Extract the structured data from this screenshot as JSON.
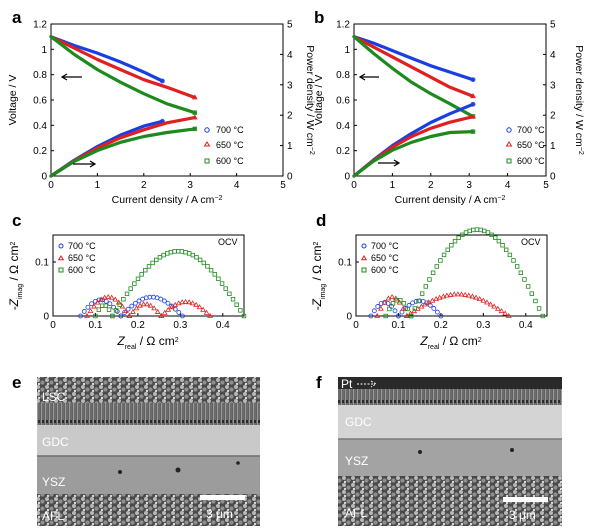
{
  "figure": {
    "panels": {
      "a": "a",
      "b": "b",
      "c": "c",
      "d": "d",
      "e": "e",
      "f": "f"
    }
  },
  "legend": {
    "series": [
      "700 °C",
      "650 °C",
      "600 °C"
    ],
    "colors": [
      "#1a3fe0",
      "#e02020",
      "#1e8a1e"
    ],
    "markers": [
      "circle",
      "triangle",
      "square"
    ]
  },
  "chart_data": [
    {
      "panel": "a",
      "type": "line",
      "xlabel": "Current density / A cm",
      "xlabel_sup": "−2",
      "ylabel_left": "Voltage / V",
      "ylabel_right": "Power density / W cm",
      "ylabel_right_sup": "−2",
      "xlim": [
        0,
        5
      ],
      "ylim_left": [
        0,
        1.2
      ],
      "ylim_right": [
        0,
        5
      ],
      "xticks": [
        "0",
        "1",
        "2",
        "3",
        "4",
        "5"
      ],
      "yticks_left": [
        "0",
        "0.2",
        "0.4",
        "0.6",
        "0.8",
        "1",
        "1.2"
      ],
      "yticks_right": [
        "0",
        "1",
        "2",
        "3",
        "4",
        "5"
      ],
      "series": [
        {
          "name": "700 °C",
          "axis": "left",
          "x": [
            0,
            0.5,
            1,
            1.5,
            2,
            2.4
          ],
          "y": [
            1.1,
            1.03,
            0.97,
            0.9,
            0.82,
            0.75
          ]
        },
        {
          "name": "650 °C",
          "axis": "left",
          "x": [
            0,
            0.5,
            1,
            1.5,
            2,
            2.5,
            3.1
          ],
          "y": [
            1.1,
            1.01,
            0.92,
            0.84,
            0.76,
            0.7,
            0.62
          ]
        },
        {
          "name": "600 °C",
          "axis": "left",
          "x": [
            0,
            0.5,
            1,
            1.5,
            2,
            2.5,
            3.1
          ],
          "y": [
            1.1,
            0.96,
            0.84,
            0.74,
            0.65,
            0.57,
            0.5
          ]
        },
        {
          "name": "700 °C",
          "axis": "right",
          "x": [
            0,
            0.5,
            1,
            1.5,
            2,
            2.4
          ],
          "y": [
            0,
            0.52,
            0.97,
            1.35,
            1.64,
            1.8
          ]
        },
        {
          "name": "650 °C",
          "axis": "right",
          "x": [
            0,
            0.5,
            1,
            1.5,
            2,
            2.5,
            3.1
          ],
          "y": [
            0,
            0.5,
            0.92,
            1.26,
            1.52,
            1.75,
            1.92
          ]
        },
        {
          "name": "600 °C",
          "axis": "right",
          "x": [
            0,
            0.5,
            1,
            1.5,
            2,
            2.5,
            3.1
          ],
          "y": [
            0,
            0.48,
            0.84,
            1.11,
            1.3,
            1.43,
            1.55
          ]
        }
      ]
    },
    {
      "panel": "b",
      "type": "line",
      "xlabel": "Current density / A cm",
      "xlabel_sup": "−2",
      "ylabel_left": "Voltage / V",
      "ylabel_right": "Power density / W cm",
      "ylabel_right_sup": "−2",
      "xlim": [
        0,
        5
      ],
      "ylim_left": [
        0,
        1.2
      ],
      "ylim_right": [
        0,
        5
      ],
      "xticks": [
        "0",
        "1",
        "2",
        "3",
        "4",
        "5"
      ],
      "yticks_left": [
        "0",
        "0.2",
        "0.4",
        "0.6",
        "0.8",
        "1",
        "1.2"
      ],
      "yticks_right": [
        "0",
        "1",
        "2",
        "3",
        "4",
        "5"
      ],
      "series": [
        {
          "name": "700 °C",
          "axis": "left",
          "x": [
            0,
            0.5,
            1,
            1.5,
            2,
            2.5,
            3.1
          ],
          "y": [
            1.1,
            1.05,
            0.99,
            0.93,
            0.87,
            0.82,
            0.76
          ]
        },
        {
          "name": "650 °C",
          "axis": "left",
          "x": [
            0,
            0.5,
            1,
            1.5,
            2,
            2.5,
            3.1
          ],
          "y": [
            1.1,
            1.02,
            0.94,
            0.86,
            0.78,
            0.7,
            0.63
          ]
        },
        {
          "name": "600 °C",
          "axis": "left",
          "x": [
            0,
            0.5,
            1,
            1.5,
            2,
            2.5,
            3.1
          ],
          "y": [
            1.1,
            0.97,
            0.85,
            0.74,
            0.65,
            0.57,
            0.47
          ]
        },
        {
          "name": "700 °C",
          "axis": "right",
          "x": [
            0,
            0.5,
            1,
            1.5,
            2,
            2.5,
            3.1
          ],
          "y": [
            0,
            0.52,
            1,
            1.4,
            1.76,
            2.05,
            2.36
          ]
        },
        {
          "name": "650 °C",
          "axis": "right",
          "x": [
            0,
            0.5,
            1,
            1.5,
            2,
            2.5,
            3.1
          ],
          "y": [
            0,
            0.5,
            0.95,
            1.3,
            1.57,
            1.77,
            1.95
          ]
        },
        {
          "name": "600 °C",
          "axis": "right",
          "x": [
            0,
            0.5,
            1,
            1.5,
            2,
            2.5,
            3.1
          ],
          "y": [
            0,
            0.48,
            0.85,
            1.11,
            1.3,
            1.43,
            1.46
          ]
        }
      ]
    },
    {
      "panel": "c",
      "type": "scatter",
      "xlabel": "Z",
      "xlabel_sub": "real",
      "xlabel_unit": " / Ω cm",
      "xlabel_unit_sup": "2",
      "ylabel": "-Z",
      "ylabel_sub": "imag",
      "ylabel_unit": " / Ω cm",
      "ylabel_unit_sup": "2",
      "annotation": "OCV",
      "xlim": [
        0,
        0.45
      ],
      "ylim": [
        0,
        0.15
      ],
      "xticks": [
        "0",
        "0.1",
        "0.2",
        "0.3",
        "0.4"
      ],
      "yticks": [
        "0",
        "0.1"
      ],
      "arcs": [
        {
          "name": "700 °C",
          "segments": [
            [
              0.065,
              0.16,
              0.03
            ],
            [
              0.16,
              0.305,
              0.035
            ]
          ]
        },
        {
          "name": "650 °C",
          "segments": [
            [
              0.08,
              0.18,
              0.035
            ],
            [
              0.18,
              0.255,
              0.022
            ],
            [
              0.255,
              0.37,
              0.026
            ]
          ]
        },
        {
          "name": "600 °C",
          "segments": [
            [
              0.1,
              0.14,
              0.02
            ],
            [
              0.14,
              0.45,
              0.12
            ]
          ]
        }
      ]
    },
    {
      "panel": "d",
      "type": "scatter",
      "xlabel": "Z",
      "xlabel_sub": "real",
      "xlabel_unit": " / Ω cm",
      "xlabel_unit_sup": "2",
      "ylabel": "-Z",
      "ylabel_sub": "imag",
      "ylabel_unit": " / Ω cm",
      "ylabel_unit_sup": "2",
      "annotation": "OCV",
      "xlim": [
        0,
        0.45
      ],
      "ylim": [
        0,
        0.15
      ],
      "xticks": [
        "0",
        "0.1",
        "0.2",
        "0.3",
        "0.4"
      ],
      "yticks": [
        "0",
        "0.1"
      ],
      "arcs": [
        {
          "name": "700 °C",
          "segments": [
            [
              0.035,
              0.1,
              0.025
            ],
            [
              0.1,
              0.2,
              0.028
            ]
          ]
        },
        {
          "name": "650 °C",
          "segments": [
            [
              0.05,
              0.12,
              0.035
            ],
            [
              0.12,
              0.36,
              0.04
            ]
          ]
        },
        {
          "name": "600 °C",
          "segments": [
            [
              0.07,
              0.13,
              0.03
            ],
            [
              0.13,
              0.44,
              0.16
            ]
          ]
        }
      ]
    }
  ],
  "micrographs": {
    "e": {
      "labels": [
        "LSC",
        "GDC",
        "YSZ",
        "AFL"
      ],
      "scale": "3 μm"
    },
    "f": {
      "labels": [
        "Pt",
        "GDC",
        "YSZ",
        "AFL"
      ],
      "scale": "3 μm"
    }
  }
}
